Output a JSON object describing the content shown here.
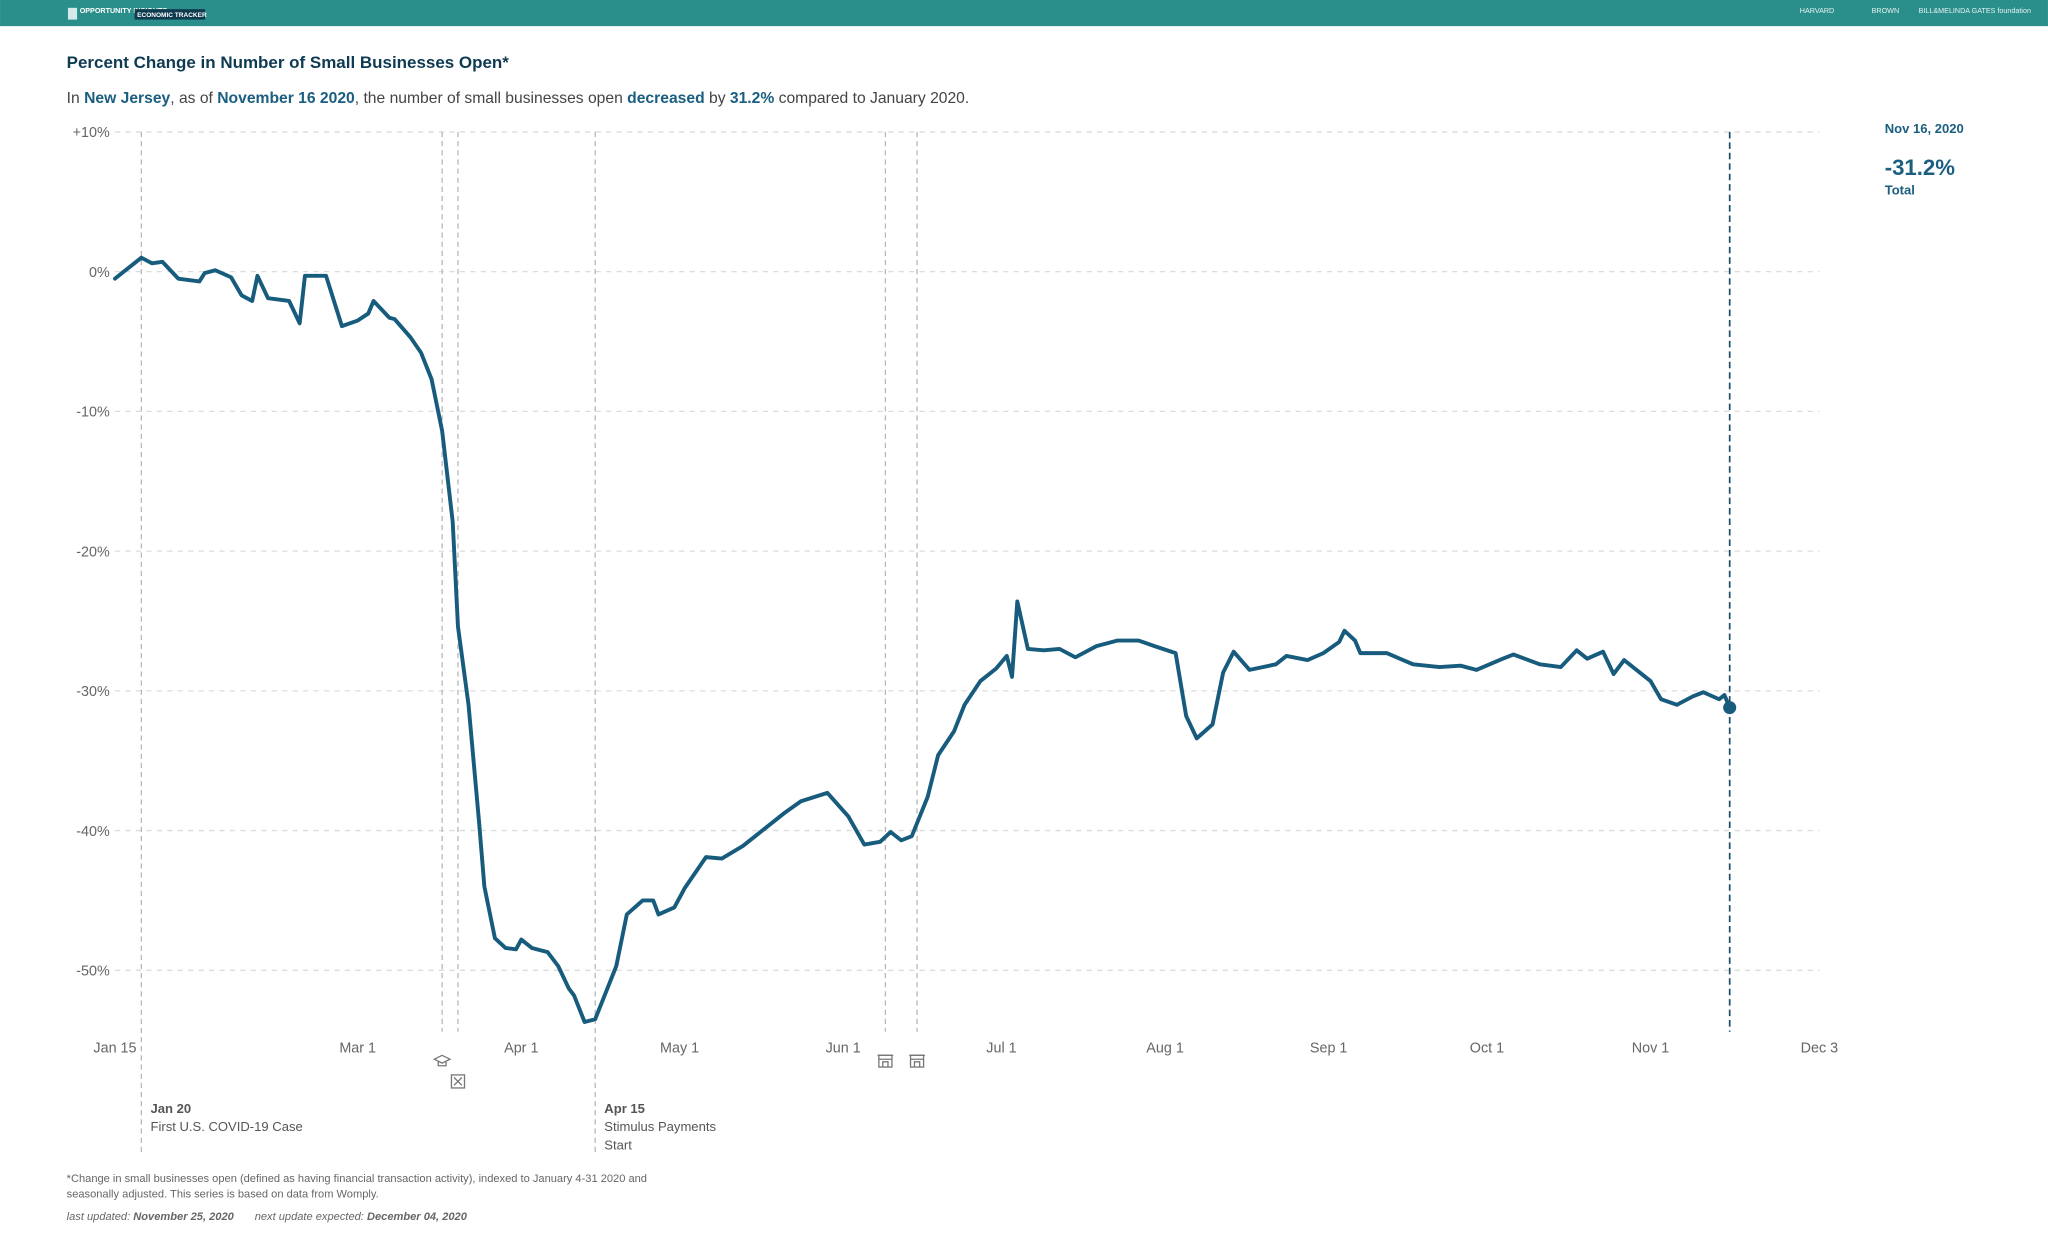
{
  "header": {
    "brand": "OPPORTUNITY INSIGHTS",
    "product": "ECONOMIC TRACKER",
    "partners": [
      "HARVARD",
      "BROWN",
      "BILL&MELINDA GATES foundation"
    ]
  },
  "chart_data": {
    "type": "line",
    "title": "Percent Change in Number of Small Businesses Open*",
    "subtitle": [
      {
        "text": "In "
      },
      {
        "text": "New Jersey",
        "bold": true
      },
      {
        "text": ", as of "
      },
      {
        "text": "November 16 2020",
        "bold": true
      },
      {
        "text": ", the number of small businesses open "
      },
      {
        "text": "decreased",
        "bold": true
      },
      {
        "text": " by "
      },
      {
        "text": "31.2%",
        "bold": true
      },
      {
        "text": " compared to January 2020."
      }
    ],
    "color": "#175b7d",
    "grid": true,
    "xlim": [
      "Jan 15",
      "Dec 3"
    ],
    "xticks": [
      "Jan 15",
      "Mar 1",
      "Apr 1",
      "May 1",
      "Jun 1",
      "Jul 1",
      "Aug 1",
      "Sep 1",
      "Oct 1",
      "Nov 1",
      "Dec 3"
    ],
    "ylim": [
      -54.4,
      10
    ],
    "yticks": [
      {
        "value": 10,
        "label": "+10%"
      },
      {
        "value": 0,
        "label": "0%"
      },
      {
        "value": -10,
        "label": "-10%"
      },
      {
        "value": -20,
        "label": "-20%"
      },
      {
        "value": -30,
        "label": "-30%"
      },
      {
        "value": -40,
        "label": "-40%"
      },
      {
        "value": -50,
        "label": "-50%"
      }
    ],
    "x": [
      "Jan 15",
      "Jan 20",
      "Jan 22",
      "Jan 24",
      "Jan 27",
      "Jan 31",
      "Feb 1",
      "Feb 3",
      "Feb 6",
      "Feb 8",
      "Feb 10",
      "Feb 11",
      "Feb 13",
      "Feb 17",
      "Feb 19",
      "Feb 20",
      "Feb 24",
      "Feb 27",
      "Mar 1",
      "Mar 3",
      "Mar 4",
      "Mar 5",
      "Mar 7",
      "Mar 8",
      "Mar 11",
      "Mar 13",
      "Mar 15",
      "Mar 17",
      "Mar 19",
      "Mar 20",
      "Mar 22",
      "Mar 24",
      "Mar 25",
      "Mar 27",
      "Mar 29",
      "Mar 31",
      "Apr 1",
      "Apr 3",
      "Apr 6",
      "Apr 8",
      "Apr 10",
      "Apr 11",
      "Apr 13",
      "Apr 15",
      "Apr 17",
      "Apr 19",
      "Apr 21",
      "Apr 24",
      "Apr 26",
      "Apr 27",
      "Apr 30",
      "May 2",
      "May 6",
      "May 9",
      "May 13",
      "May 17",
      "May 21",
      "May 24",
      "May 29",
      "Jun 2",
      "Jun 5",
      "Jun 8",
      "Jun 10",
      "Jun 12",
      "Jun 14",
      "Jun 17",
      "Jun 19",
      "Jun 22",
      "Jun 24",
      "Jun 27",
      "Jun 30",
      "Jul 2",
      "Jul 3",
      "Jul 4",
      "Jul 6",
      "Jul 9",
      "Jul 12",
      "Jul 15",
      "Jul 19",
      "Jul 23",
      "Jul 27",
      "Jul 30",
      "Aug 3",
      "Aug 5",
      "Aug 7",
      "Aug 10",
      "Aug 12",
      "Aug 14",
      "Aug 17",
      "Aug 22",
      "Aug 24",
      "Aug 28",
      "Aug 31",
      "Sep 3",
      "Sep 4",
      "Sep 6",
      "Sep 7",
      "Sep 12",
      "Sep 17",
      "Sep 22",
      "Sep 26",
      "Sep 29",
      "Oct 4",
      "Oct 6",
      "Oct 11",
      "Oct 15",
      "Oct 18",
      "Oct 20",
      "Oct 23",
      "Oct 25",
      "Oct 27",
      "Oct 30",
      "Nov 1",
      "Nov 3",
      "Nov 6",
      "Nov 9",
      "Nov 11",
      "Nov 14",
      "Nov 15",
      "Nov 16"
    ],
    "values": [
      -0.5,
      1.0,
      0.6,
      0.7,
      -0.5,
      -0.7,
      -0.1,
      0.1,
      -0.4,
      -1.7,
      -2.1,
      -0.3,
      -1.9,
      -2.1,
      -3.7,
      -0.3,
      -0.3,
      -3.9,
      -3.5,
      -3.0,
      -2.1,
      -2.5,
      -3.3,
      -3.4,
      -4.7,
      -5.8,
      -7.7,
      -11.4,
      -17.9,
      -25.4,
      -31.0,
      -39.4,
      -44.0,
      -47.7,
      -48.4,
      -48.5,
      -47.8,
      -48.4,
      -48.7,
      -49.7,
      -51.3,
      -51.8,
      -53.7,
      -53.5,
      -51.6,
      -49.7,
      -46.0,
      -45.0,
      -45.0,
      -46.0,
      -45.5,
      -44.1,
      -41.9,
      -42.0,
      -41.1,
      -39.9,
      -38.7,
      -37.9,
      -37.3,
      -39.0,
      -41.0,
      -40.8,
      -40.1,
      -40.7,
      -40.4,
      -37.6,
      -34.6,
      -32.9,
      -31.0,
      -29.3,
      -28.4,
      -27.5,
      -29.0,
      -23.6,
      -27.0,
      -27.1,
      -27.0,
      -27.6,
      -26.8,
      -26.4,
      -26.4,
      -26.8,
      -27.3,
      -31.8,
      -33.4,
      -32.4,
      -28.7,
      -27.2,
      -28.5,
      -28.1,
      -27.5,
      -27.8,
      -27.3,
      -26.5,
      -25.7,
      -26.4,
      -27.3,
      -27.3,
      -28.1,
      -28.3,
      -28.2,
      -28.5,
      -27.7,
      -27.4,
      -28.1,
      -28.3,
      -27.1,
      -27.7,
      -27.2,
      -28.8,
      -27.8,
      -28.7,
      -29.3,
      -30.6,
      -31.0,
      -30.4,
      -30.1,
      -30.6,
      -30.3,
      -31.2
    ],
    "events": [
      {
        "date": "Jan 20",
        "label": "Jan 20",
        "text": [
          "First U.S. COVID-19 Case"
        ]
      },
      {
        "date": "Mar 17",
        "icon": "school"
      },
      {
        "date": "Mar 20",
        "icon": "close"
      },
      {
        "date": "Apr 15",
        "label": "Apr 15",
        "text": [
          "Stimulus Payments",
          "Start"
        ]
      },
      {
        "date": "Jun 9",
        "icon": "store"
      },
      {
        "date": "Jun 15",
        "icon": "store"
      }
    ],
    "summary": {
      "date": "Nov 16, 2020",
      "value": "-31.2%",
      "label": "Total"
    }
  },
  "footer": {
    "note": [
      "*Change in small businesses open (defined as having financial transaction activity), indexed to January 4-31 2020 and",
      "seasonally adjusted. This series is based on data from Womply."
    ],
    "updated_label": "last updated: ",
    "updated": "November 25, 2020",
    "next_label": "next update expected: ",
    "next": "December 04, 2020"
  }
}
